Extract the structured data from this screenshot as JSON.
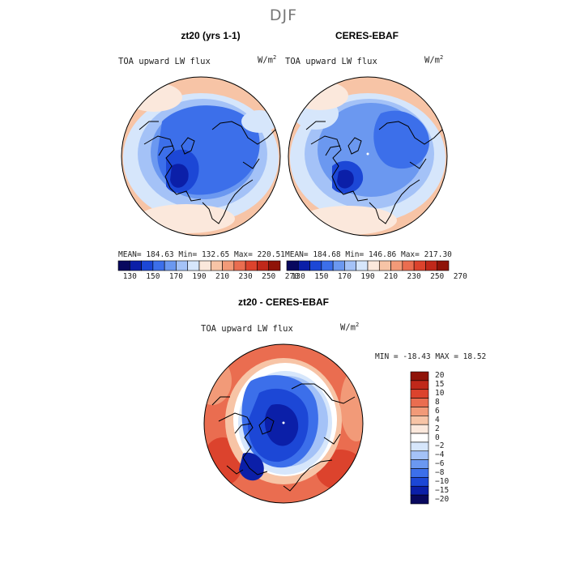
{
  "figure": {
    "season": "DJF"
  },
  "panels": [
    {
      "title": "zt20 (yrs 1-1)",
      "variable": "TOA upward LW flux",
      "units_base": "W/m",
      "units_exp": "2",
      "stats_text": "MEAN= 184.63   Min= 132.65   Max= 220.51"
    },
    {
      "title": "CERES-EBAF",
      "variable": "TOA upward LW flux",
      "units_base": "W/m",
      "units_exp": "2",
      "stats_text": "MEAN= 184.68   Min= 146.86   Max= 217.30"
    },
    {
      "title": "zt20 - CERES-EBAF",
      "variable": "TOA upward LW flux",
      "units_base": "W/m",
      "units_exp": "2",
      "stats_text": "MIN = -18.43 MAX =  18.52"
    }
  ],
  "colorbar_main": {
    "labels": [
      "130",
      "150",
      "170",
      "190",
      "210",
      "230",
      "250",
      "270"
    ],
    "colors": [
      "#08085e",
      "#0b1fa8",
      "#1c47d6",
      "#3c6fea",
      "#6b98f0",
      "#a4c2f7",
      "#d6e6fb",
      "#fbe8dc",
      "#f7c4a6",
      "#f29a78",
      "#ea6d50",
      "#dc432d",
      "#c0281a",
      "#8f1308"
    ]
  },
  "colorbar_diff": {
    "labels": [
      "20",
      "15",
      "10",
      "8",
      "6",
      "4",
      "2",
      "0",
      "−2",
      "−4",
      "−6",
      "−8",
      "−10",
      "−15",
      "−20"
    ],
    "colors": [
      "#8f1308",
      "#c0281a",
      "#dc432d",
      "#ea6d50",
      "#f29a78",
      "#f7c4a6",
      "#fbe8dc",
      "#ffffff",
      "#d6e6fb",
      "#a4c2f7",
      "#6b98f0",
      "#3c6fea",
      "#1c47d6",
      "#0b1fa8",
      "#08085e"
    ]
  }
}
